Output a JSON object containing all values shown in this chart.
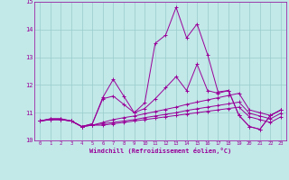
{
  "xlabel": "Windchill (Refroidissement éolien,°C)",
  "xlim": [
    -0.5,
    23.5
  ],
  "ylim": [
    10,
    15
  ],
  "yticks": [
    10,
    11,
    12,
    13,
    14,
    15
  ],
  "xticks": [
    0,
    1,
    2,
    3,
    4,
    5,
    6,
    7,
    8,
    9,
    10,
    11,
    12,
    13,
    14,
    15,
    16,
    17,
    18,
    19,
    20,
    21,
    22,
    23
  ],
  "bg_color": "#c2e8e8",
  "line_color": "#990099",
  "grid_color": "#99cccc",
  "lines": [
    [
      10.7,
      10.75,
      10.75,
      10.7,
      10.5,
      10.55,
      10.55,
      10.6,
      10.65,
      10.7,
      10.75,
      10.8,
      10.85,
      10.9,
      10.95,
      11.0,
      11.05,
      11.1,
      11.15,
      11.2,
      10.85,
      10.75,
      10.65,
      10.85
    ],
    [
      10.7,
      10.75,
      10.75,
      10.7,
      10.5,
      10.55,
      10.6,
      10.65,
      10.7,
      10.75,
      10.82,
      10.88,
      10.94,
      11.0,
      11.08,
      11.14,
      11.2,
      11.26,
      11.32,
      11.38,
      10.98,
      10.88,
      10.78,
      10.98
    ],
    [
      10.7,
      10.75,
      10.75,
      10.7,
      10.5,
      10.55,
      10.65,
      10.75,
      10.82,
      10.88,
      10.96,
      11.04,
      11.12,
      11.2,
      11.3,
      11.38,
      11.46,
      11.54,
      11.62,
      11.7,
      11.1,
      11.0,
      10.9,
      11.1
    ],
    [
      10.7,
      10.78,
      10.78,
      10.7,
      10.5,
      10.6,
      11.5,
      11.6,
      11.3,
      11.0,
      11.15,
      11.5,
      11.9,
      12.3,
      11.8,
      12.75,
      11.8,
      11.7,
      11.8,
      10.9,
      10.5,
      10.4,
      10.9,
      11.1
    ],
    [
      10.7,
      10.78,
      10.78,
      10.7,
      10.5,
      10.6,
      11.55,
      12.2,
      11.6,
      11.0,
      11.35,
      13.5,
      13.8,
      14.8,
      13.7,
      14.2,
      13.1,
      11.75,
      11.8,
      10.9,
      10.5,
      10.4,
      10.9,
      11.1
    ]
  ]
}
